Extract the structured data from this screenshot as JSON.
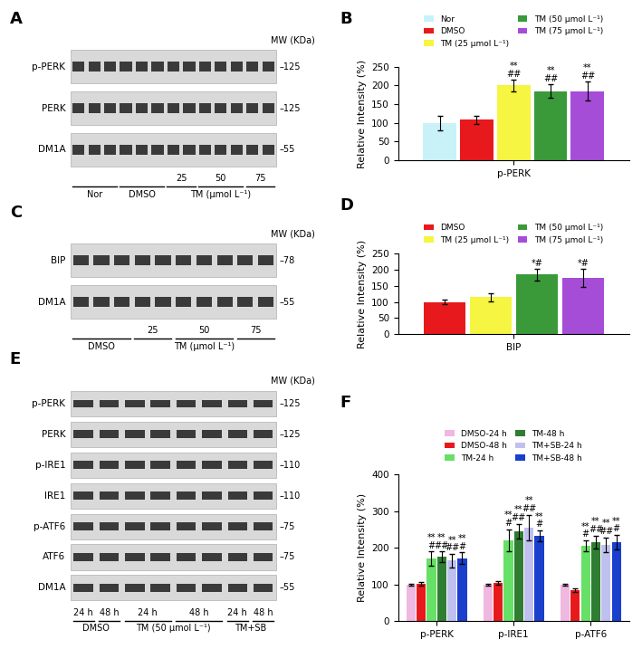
{
  "chart_data": [
    {
      "panel": "B",
      "type": "bar",
      "ylabel": "Relative Intensity (%)",
      "categories": [
        "p-PERK"
      ],
      "ylim": [
        0,
        250
      ],
      "yticks": [
        0,
        50,
        100,
        150,
        200,
        250
      ],
      "legend": "lower center",
      "series": [
        {
          "name": "Nor",
          "color": "#c8f2f8",
          "values": [
            100
          ],
          "errors": [
            20
          ],
          "annotations": [
            []
          ]
        },
        {
          "name": "DMSO",
          "color": "#e8191c",
          "values": [
            108
          ],
          "errors": [
            10
          ],
          "annotations": [
            []
          ]
        },
        {
          "name": "TM (25 μmol L⁻¹)",
          "color": "#f5f542",
          "values": [
            200
          ],
          "errors": [
            15
          ],
          "annotations": [
            [
              "**",
              "##"
            ]
          ]
        },
        {
          "name": "TM (50 μmol L⁻¹)",
          "color": "#3a9a3a",
          "values": [
            185
          ],
          "errors": [
            18
          ],
          "annotations": [
            [
              "**",
              "##"
            ]
          ]
        },
        {
          "name": "TM (75 μmol L⁻¹)",
          "color": "#a64dd8",
          "values": [
            185
          ],
          "errors": [
            25
          ],
          "annotations": [
            [
              "**",
              "##"
            ]
          ]
        }
      ]
    },
    {
      "panel": "D",
      "type": "bar",
      "ylabel": "Relative Intensity (%)",
      "categories": [
        "BIP"
      ],
      "ylim": [
        0,
        250
      ],
      "yticks": [
        0,
        50,
        100,
        150,
        200,
        250
      ],
      "legend": "lower center",
      "series": [
        {
          "name": "DMSO",
          "color": "#e8191c",
          "values": [
            100
          ],
          "errors": [
            8
          ],
          "annotations": [
            []
          ]
        },
        {
          "name": "TM (25 μmol L⁻¹)",
          "color": "#f5f542",
          "values": [
            115
          ],
          "errors": [
            12
          ],
          "annotations": [
            []
          ]
        },
        {
          "name": "TM (50 μmol L⁻¹)",
          "color": "#3a9a3a",
          "values": [
            185
          ],
          "errors": [
            18
          ],
          "annotations": [
            [
              "*#"
            ]
          ]
        },
        {
          "name": "TM (75 μmol L⁻¹)",
          "color": "#a64dd8",
          "values": [
            175
          ],
          "errors": [
            28
          ],
          "annotations": [
            [
              "*#"
            ]
          ]
        }
      ]
    },
    {
      "panel": "F",
      "type": "bar",
      "ylabel": "Relative Intensity (%)",
      "categories": [
        "p-PERK",
        "p-IRE1",
        "p-ATF6"
      ],
      "ylim": [
        0,
        400
      ],
      "yticks": [
        0,
        100,
        200,
        300,
        400
      ],
      "legend": "lower center",
      "series": [
        {
          "name": "DMSO-24 h",
          "color": "#f0b8e0",
          "values": [
            100,
            100,
            100
          ],
          "errors": [
            3,
            3,
            2
          ],
          "annotations": [
            [],
            [],
            []
          ]
        },
        {
          "name": "DMSO-48 h",
          "color": "#e8191c",
          "values": [
            102,
            105,
            85
          ],
          "errors": [
            4,
            5,
            5
          ],
          "annotations": [
            [],
            [],
            []
          ]
        },
        {
          "name": "TM-24 h",
          "color": "#66e066",
          "values": [
            170,
            220,
            205
          ],
          "errors": [
            20,
            30,
            15
          ],
          "annotations": [
            [
              "**",
              "#"
            ],
            [
              "**",
              "#"
            ],
            [
              "**",
              "#"
            ]
          ]
        },
        {
          "name": "TM-48 h",
          "color": "#2e7d32",
          "values": [
            175,
            245,
            215
          ],
          "errors": [
            15,
            20,
            18
          ],
          "annotations": [
            [
              "**",
              "##"
            ],
            [
              "**",
              "##"
            ],
            [
              "**",
              "##"
            ]
          ]
        },
        {
          "name": "TM+SB-24 h",
          "color": "#c0c0f0",
          "values": [
            165,
            255,
            208
          ],
          "errors": [
            18,
            35,
            20
          ],
          "annotations": [
            [
              "**",
              "##"
            ],
            [
              "**",
              "##"
            ],
            [
              "**",
              "##"
            ]
          ]
        },
        {
          "name": "TM+SB-48 h",
          "color": "#1a3fcc",
          "values": [
            172,
            232,
            215
          ],
          "errors": [
            15,
            15,
            20
          ],
          "annotations": [
            [
              "**",
              "#"
            ],
            [
              "**",
              "#"
            ],
            [
              "**",
              "#"
            ]
          ]
        }
      ]
    }
  ],
  "blots": [
    {
      "panel": "A",
      "mw_header": "MW (KDa)",
      "rows": [
        {
          "label": "p-PERK",
          "mw": "–125"
        },
        {
          "label": "PERK",
          "mw": "–125"
        },
        {
          "label": "DM1A",
          "mw": "–55"
        }
      ],
      "groups": [
        {
          "label": "Nor",
          "lanes": 3
        },
        {
          "label": "DMSO",
          "lanes": 3
        },
        {
          "label": "TM (μmol L⁻¹)",
          "sub": [
            {
              "label": "25",
              "lanes": 2
            },
            {
              "label": "50",
              "lanes": 3
            },
            {
              "label": "75",
              "lanes": 2
            }
          ]
        }
      ]
    },
    {
      "panel": "C",
      "mw_header": "MW (KDa)",
      "rows": [
        {
          "label": "BIP",
          "mw": "–78"
        },
        {
          "label": "DM1A",
          "mw": "–55"
        }
      ],
      "groups": [
        {
          "label": "DMSO",
          "lanes": 3
        },
        {
          "label": "TM (μmol L⁻¹)",
          "sub": [
            {
              "label": "25",
              "lanes": 2
            },
            {
              "label": "50",
              "lanes": 3
            },
            {
              "label": "75",
              "lanes": 2
            }
          ]
        }
      ]
    },
    {
      "panel": "E",
      "mw_header": "MW (KDa)",
      "rows": [
        {
          "label": "p-PERK",
          "mw": "–125"
        },
        {
          "label": "PERK",
          "mw": "–125"
        },
        {
          "label": "p-IRE1",
          "mw": "–110"
        },
        {
          "label": "IRE1",
          "mw": "–110"
        },
        {
          "label": "p-ATF6",
          "mw": "–75"
        },
        {
          "label": "ATF6",
          "mw": "–75"
        },
        {
          "label": "DM1A",
          "mw": "–55"
        }
      ],
      "groups": [
        {
          "label": "DMSO",
          "sub": [
            {
              "label": "24 h",
              "lanes": 1
            },
            {
              "label": "48 h",
              "lanes": 1
            }
          ]
        },
        {
          "label": "TM (50 μmol L⁻¹)",
          "sub": [
            {
              "label": "24 h",
              "lanes": 2
            },
            {
              "label": "48 h",
              "lanes": 2
            }
          ]
        },
        {
          "label": "TM+SB",
          "sub": [
            {
              "label": "24 h",
              "lanes": 1
            },
            {
              "label": "48 h",
              "lanes": 1
            }
          ]
        }
      ]
    }
  ]
}
